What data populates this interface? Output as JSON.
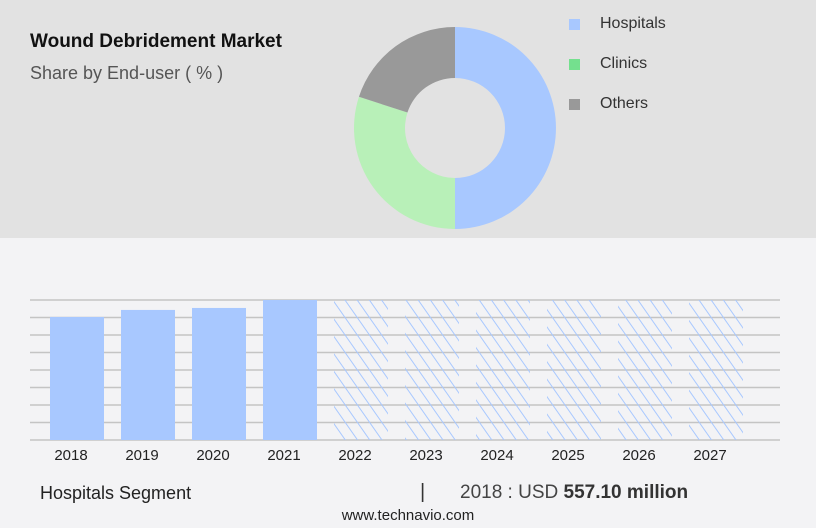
{
  "chart_data": [
    {
      "type": "pie",
      "variant": "donut",
      "title": "Wound Debridement Market",
      "subtitle": "Share by End-user ( % )",
      "legend_placement": "right",
      "slices": [
        {
          "name": "Hospitals",
          "value": 50,
          "color": "#a8c8ff"
        },
        {
          "name": "Clinics",
          "value": 30,
          "color": "#b8f0b8"
        },
        {
          "name": "Others",
          "value": 20,
          "color": "#999999"
        }
      ],
      "legend_colors": [
        "#a8c8ff",
        "#74e08e",
        "#999999"
      ]
    },
    {
      "type": "bar",
      "categories": [
        "2018",
        "2019",
        "2020",
        "2021",
        "2022",
        "2023",
        "2024",
        "2025",
        "2026",
        "2027"
      ],
      "values": [
        557.1,
        589,
        598,
        634,
        null,
        null,
        null,
        null,
        null,
        null
      ],
      "forecast": [
        false,
        false,
        false,
        false,
        true,
        true,
        true,
        true,
        true,
        true
      ],
      "ylim": [
        0,
        634
      ],
      "grid": true,
      "color": "#a8c8ff",
      "unit": "USD million"
    }
  ],
  "footer": {
    "segment": "Hospitals Segment",
    "separator": "|",
    "year_label": "2018 : USD ",
    "value_label": "557.10 million",
    "site": "www.technavio.com"
  }
}
